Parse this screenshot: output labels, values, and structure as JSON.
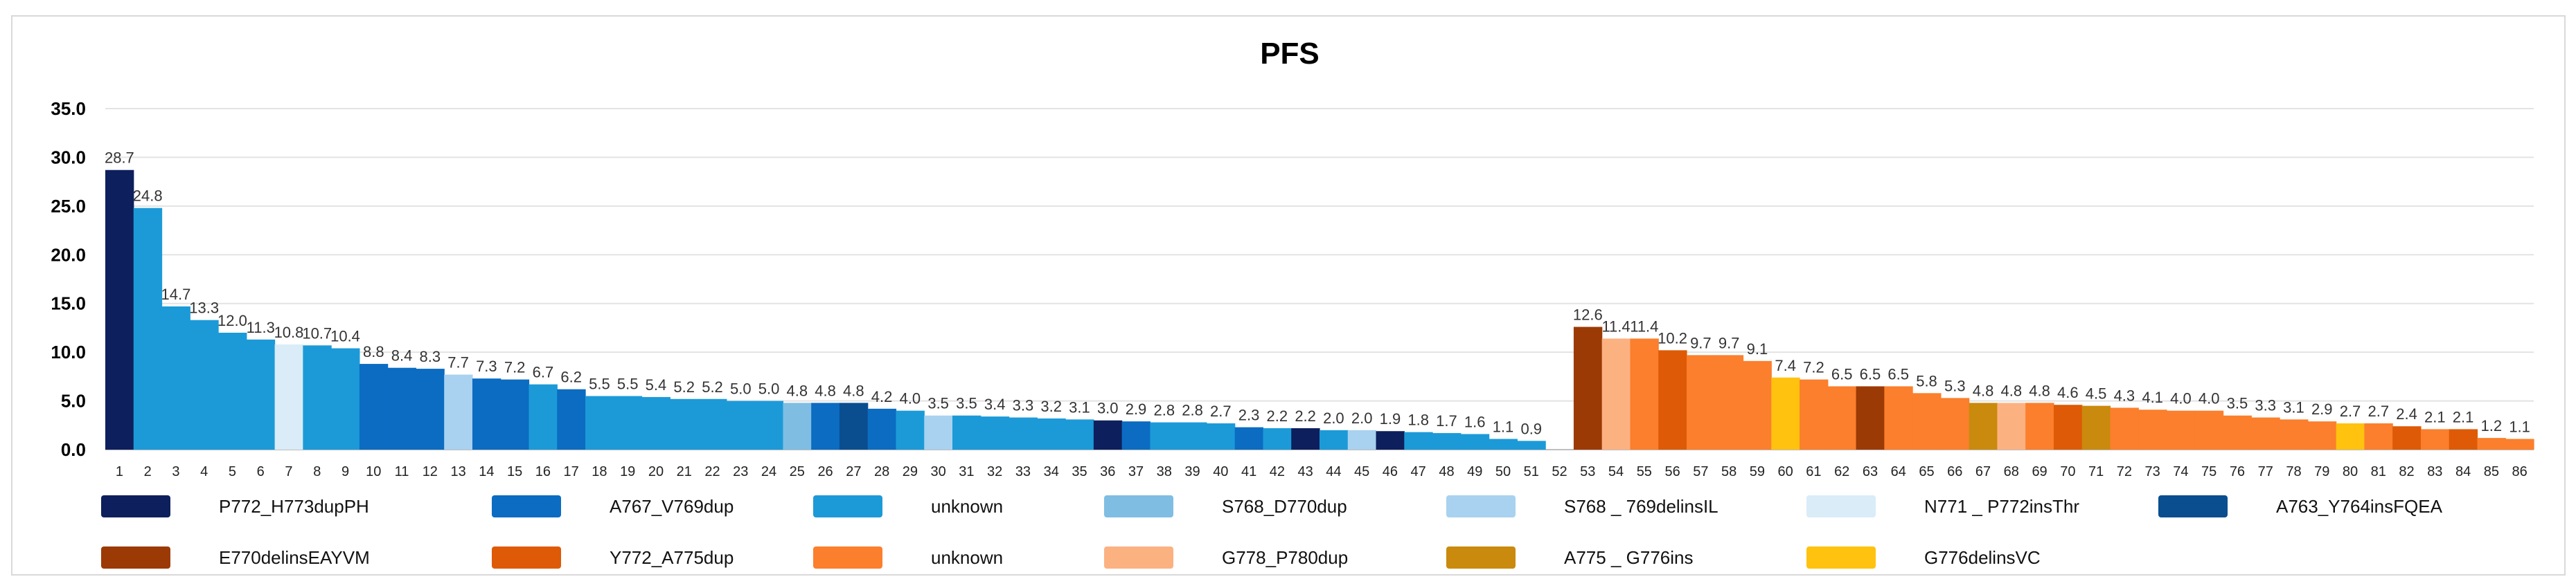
{
  "chart_data": {
    "type": "bar",
    "title": "PFS",
    "xlabel": "",
    "ylabel": "",
    "ylim": [
      0,
      35
    ],
    "yticks": [
      "0.0",
      "5.0",
      "10.0",
      "15.0",
      "20.0",
      "25.0",
      "30.0",
      "35.0"
    ],
    "grid": true,
    "legend_position": "bottom",
    "categories": [
      "1",
      "2",
      "3",
      "4",
      "5",
      "6",
      "7",
      "8",
      "9",
      "10",
      "11",
      "12",
      "13",
      "14",
      "15",
      "16",
      "17",
      "18",
      "19",
      "20",
      "21",
      "22",
      "23",
      "24",
      "25",
      "26",
      "27",
      "28",
      "29",
      "30",
      "31",
      "32",
      "33",
      "34",
      "35",
      "36",
      "37",
      "38",
      "39",
      "40",
      "41",
      "42",
      "43",
      "44",
      "45",
      "46",
      "47",
      "48",
      "49",
      "50",
      "51",
      "52",
      "53",
      "54",
      "55",
      "56",
      "57",
      "58",
      "59",
      "60",
      "61",
      "62",
      "63",
      "64",
      "65",
      "66",
      "67",
      "68",
      "69",
      "70",
      "71",
      "72",
      "73",
      "74",
      "75",
      "76",
      "77",
      "78",
      "79",
      "80",
      "81",
      "82",
      "83",
      "84",
      "85",
      "86"
    ],
    "values": [
      28.7,
      24.8,
      14.7,
      13.3,
      12.0,
      11.3,
      10.8,
      10.7,
      10.4,
      8.8,
      8.4,
      8.3,
      7.7,
      7.3,
      7.2,
      6.7,
      6.2,
      5.5,
      5.5,
      5.4,
      5.2,
      5.2,
      5.0,
      5.0,
      4.8,
      4.8,
      4.8,
      4.2,
      4.0,
      3.5,
      3.5,
      3.4,
      3.3,
      3.2,
      3.1,
      3.0,
      2.9,
      2.8,
      2.8,
      2.7,
      2.3,
      2.2,
      2.2,
      2.0,
      2.0,
      1.9,
      1.8,
      1.7,
      1.6,
      1.1,
      0.9,
      null,
      12.6,
      11.4,
      11.4,
      10.2,
      9.7,
      9.7,
      9.1,
      7.4,
      7.2,
      6.5,
      6.5,
      6.5,
      5.8,
      5.3,
      4.8,
      4.8,
      4.8,
      4.6,
      4.5,
      4.3,
      4.1,
      4.0,
      4.0,
      3.5,
      3.3,
      3.1,
      2.9,
      2.7,
      2.7,
      2.4,
      2.1,
      2.1,
      1.2,
      1.1
    ],
    "data_labels": [
      "28.7",
      "24.8",
      "14.7",
      "13.3",
      "12.0",
      "11.3",
      "10.8",
      "10.7",
      "10.4",
      "8.8",
      "8.4",
      "8.3",
      "7.7",
      "7.3",
      "7.2",
      "6.7",
      "6.2",
      "5.5",
      "5.5",
      "5.4",
      "5.2",
      "5.2",
      "5.0",
      "5.0",
      "4.8",
      "4.8",
      "4.8",
      "4.2",
      "4.0",
      "3.5",
      "3.5",
      "3.4",
      "3.3",
      "3.2",
      "3.1",
      "3.0",
      "2.9",
      "2.8",
      "2.8",
      "2.7",
      "2.3",
      "2.2",
      "2.2",
      "2.0",
      "2.0",
      "1.9",
      "1.8",
      "1.7",
      "1.6",
      "1.1",
      "0.9",
      "",
      "12.6",
      "11.4",
      "11.4",
      "10.2",
      "9.7",
      "9.7",
      "9.1",
      "7.4",
      "7.2",
      "6.5",
      "6.5",
      "6.5",
      "5.8",
      "5.3",
      "4.8",
      "4.8",
      "4.8",
      "4.6",
      "4.5",
      "4.3",
      "4.1",
      "4.0",
      "4.0",
      "3.5",
      "3.3",
      "3.1",
      "2.9",
      "2.7",
      "2.7",
      "2.4",
      "2.1",
      "2.1",
      "1.2",
      "1.1"
    ],
    "bar_groups": [
      "P772_H773dupPH",
      "unknown",
      "unknown",
      "unknown",
      "unknown",
      "unknown",
      "N771 _ P772insThr",
      "unknown",
      "unknown",
      "A767_V769dup",
      "A767_V769dup",
      "A767_V769dup",
      "S768 _ 769delinsIL",
      "A767_V769dup",
      "A767_V769dup",
      "unknown",
      "A767_V769dup",
      "unknown",
      "unknown",
      "unknown",
      "unknown",
      "unknown",
      "unknown",
      "unknown",
      "S768_D770dup",
      "A767_V769dup",
      "A763_Y764insFQEA",
      "A767_V769dup",
      "unknown",
      "S768 _ 769delinsIL",
      "unknown",
      "unknown",
      "unknown",
      "unknown",
      "unknown",
      "P772_H773dupPH",
      "A767_V769dup",
      "unknown",
      "unknown",
      "unknown",
      "A767_V769dup",
      "unknown",
      "P772_H773dupPH",
      "unknown",
      "S768 _ 769delinsIL",
      "P772_H773dupPH",
      "unknown",
      "unknown",
      "unknown",
      "unknown",
      "unknown",
      "",
      "E770delinsEAYVM",
      "G778_P780dup",
      "unknown (orange)",
      "Y772_A775dup",
      "unknown (orange)",
      "unknown (orange)",
      "unknown (orange)",
      "G776delinsVC",
      "unknown (orange)",
      "unknown (orange)",
      "E770delinsEAYVM",
      "unknown (orange)",
      "unknown (orange)",
      "unknown (orange)",
      "A775 _ G776ins",
      "G778_P780dup",
      "unknown (orange)",
      "Y772_A775dup",
      "A775 _ G776ins",
      "unknown (orange)",
      "unknown (orange)",
      "unknown (orange)",
      "unknown (orange)",
      "unknown (orange)",
      "unknown (orange)",
      "unknown (orange)",
      "unknown (orange)",
      "G776delinsVC",
      "unknown (orange)",
      "Y772_A775dup",
      "unknown (orange)",
      "Y772_A775dup",
      "unknown (orange)",
      "unknown (orange)"
    ],
    "legend": [
      {
        "label": "P772_H773dupPH",
        "color": "#0d1f5c"
      },
      {
        "label": "A767_V769dup",
        "color": "#0b6cc2"
      },
      {
        "label": "unknown",
        "color": "#1c9ad8"
      },
      {
        "label": "S768_D770dup",
        "color": "#7fbde3"
      },
      {
        "label": "S768 _ 769delinsIL",
        "color": "#a8d2ef"
      },
      {
        "label": "N771 _ P772insThr",
        "color": "#d9ecf8"
      },
      {
        "label": "A763_Y764insFQEA",
        "color": "#0a4e8f"
      },
      {
        "label": "E770delinsEAYVM",
        "color": "#9c3a05"
      },
      {
        "label": "Y772_A775dup",
        "color": "#de5a06"
      },
      {
        "label": "unknown",
        "color": "#fb7f2c"
      },
      {
        "label": "G778_P780dup",
        "color": "#fcb181"
      },
      {
        "label": "A775 _ G776ins",
        "color": "#c98a0d"
      },
      {
        "label": "G776delinsVC",
        "color": "#ffc20e"
      }
    ]
  },
  "colors": {
    "P772_H773dupPH": "#0d1f5c",
    "A767_V769dup": "#0b6cc2",
    "unknown": "#1c9ad8",
    "S768_D770dup": "#7fbde3",
    "S768 _ 769delinsIL": "#a8d2ef",
    "N771 _ P772insThr": "#d9ecf8",
    "A763_Y764insFQEA": "#0a4e8f",
    "E770delinsEAYVM": "#9c3a05",
    "Y772_A775dup": "#de5a06",
    "unknown (orange)": "#fb7f2c",
    "G778_P780dup": "#fcb181",
    "A775 _ G776ins": "#c98a0d",
    "G776delinsVC": "#ffc20e"
  }
}
